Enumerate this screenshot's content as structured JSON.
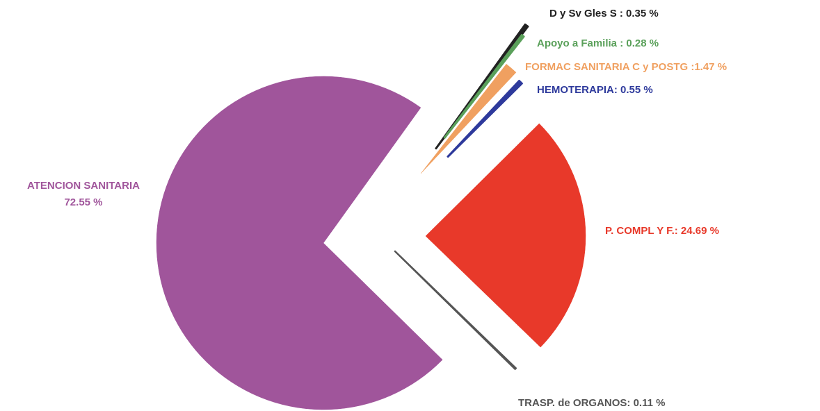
{
  "chart_data": {
    "type": "pie",
    "values": [
      72.55,
      0.35,
      0.28,
      1.47,
      0.55,
      24.69,
      0.11
    ],
    "value_labels": [
      [
        "ATENCION SANITARIA",
        "72.55 %"
      ],
      [
        "D y Sv Gles S : 0.35 %"
      ],
      [
        "Apoyo a Familia : 0.28 %"
      ],
      [
        "FORMAC  SANITARIA  C  y POSTG :1.47 %"
      ],
      [
        "HEMOTERAPIA: 0.55 %"
      ],
      [
        "P. COMPL Y F.: 24.69 %"
      ],
      [
        "TRASP. de ORGANOS: 0.11 %"
      ]
    ],
    "colors": [
      "#a0559b",
      "#222222",
      "#5aa05a",
      "#f0a060",
      "#2e3a9c",
      "#e8392a",
      "#555555"
    ]
  }
}
